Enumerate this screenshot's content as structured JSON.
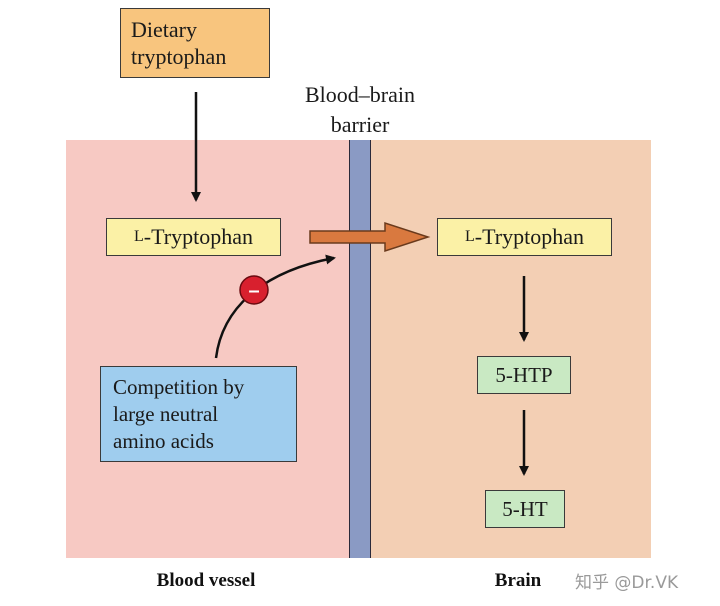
{
  "regions": {
    "blood_vessel": "Blood vessel",
    "brain": "Brain",
    "barrier_line1": "Blood–brain",
    "barrier_line2": "barrier"
  },
  "boxes": {
    "dietary_line1": "Dietary",
    "dietary_line2": "tryptophan",
    "l_prefix": "L",
    "l_rest": "-Tryptophan",
    "htp": "5-HTP",
    "ht": "5-HT",
    "competition_line1": "Competition by",
    "competition_line2": "large neutral",
    "competition_line3": "amino acids"
  },
  "inhibitor": {
    "symbol": "–"
  },
  "watermark": "知乎 @Dr.VK",
  "colors": {
    "blood_region": "#f7c9c3",
    "brain_region": "#f3cfb4",
    "barrier": "#8a9ac4",
    "transport_arrow": "#d9793f",
    "inhibitor": "#d8202e"
  }
}
